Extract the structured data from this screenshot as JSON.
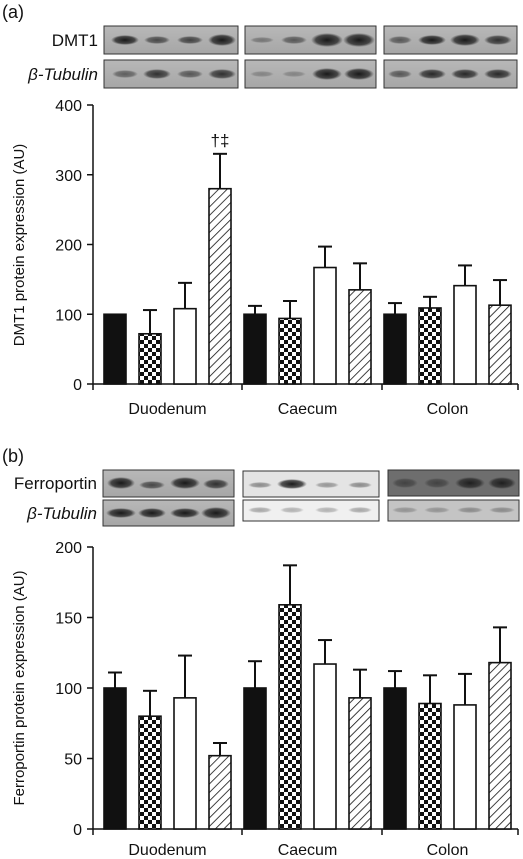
{
  "chart_data": [
    {
      "type": "bar",
      "panel_label": "(a)",
      "ylabel": "DMT1 protein expression (AU)",
      "ylim": [
        0,
        400
      ],
      "yticks": [
        0,
        100,
        200,
        300,
        400
      ],
      "categories": [
        "Duodenum",
        "Caecum",
        "Colon"
      ],
      "bar_styles": [
        "solid",
        "checker",
        "open",
        "hatch"
      ],
      "values": [
        [
          100,
          72,
          108,
          280
        ],
        [
          100,
          94,
          167,
          135
        ],
        [
          100,
          109,
          141,
          113
        ]
      ],
      "errors": [
        [
          0,
          34,
          37,
          50
        ],
        [
          12,
          25,
          30,
          38
        ],
        [
          16,
          16,
          29,
          36
        ]
      ],
      "annotations": [
        {
          "category": 0,
          "bar": 3,
          "text": "†‡"
        }
      ],
      "blot_labels": [
        "DMT1",
        "β-Tubulin"
      ]
    },
    {
      "type": "bar",
      "panel_label": "(b)",
      "ylabel": "Ferroportin protein expression (AU)",
      "ylim": [
        0,
        200
      ],
      "yticks": [
        0,
        50,
        100,
        150,
        200
      ],
      "categories": [
        "Duodenum",
        "Caecum",
        "Colon"
      ],
      "bar_styles": [
        "solid",
        "checker",
        "open",
        "hatch"
      ],
      "values": [
        [
          100,
          80,
          93,
          52
        ],
        [
          100,
          159,
          117,
          93
        ],
        [
          100,
          89,
          88,
          118
        ]
      ],
      "errors": [
        [
          11,
          18,
          30,
          9
        ],
        [
          19,
          28,
          17,
          20
        ],
        [
          12,
          20,
          22,
          25
        ]
      ],
      "annotations": [],
      "blot_labels": [
        "Ferroportin",
        "β-Tubulin"
      ]
    }
  ]
}
